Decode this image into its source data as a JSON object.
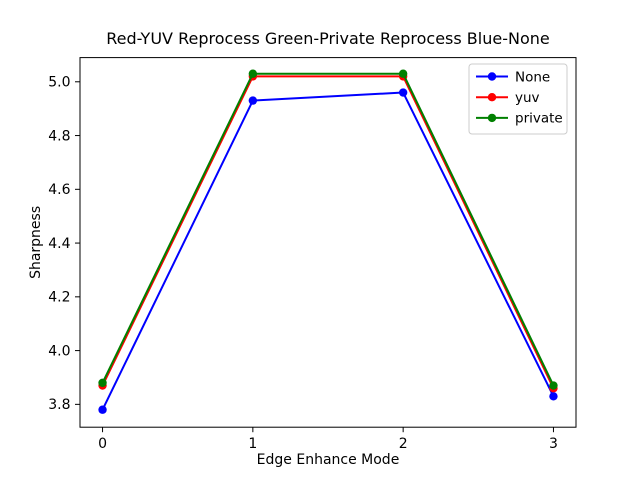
{
  "figure": {
    "background": "#ffffff",
    "plot_border_color": "#000000"
  },
  "chart_data": {
    "type": "line",
    "title": "Red-YUV Reprocess  Green-Private Reprocess  Blue-None",
    "xlabel": "Edge Enhance Mode",
    "ylabel": "Sharpness",
    "x": [
      0,
      1,
      2,
      3
    ],
    "series": [
      {
        "name": "None",
        "color": "#0000ff",
        "marker": "circle",
        "values": [
          3.78,
          4.93,
          4.96,
          3.83
        ]
      },
      {
        "name": "yuv",
        "color": "#ff0000",
        "marker": "circle",
        "values": [
          3.87,
          5.02,
          5.02,
          3.86
        ]
      },
      {
        "name": "private",
        "color": "#008000",
        "marker": "circle",
        "values": [
          3.88,
          5.03,
          5.03,
          3.87
        ]
      }
    ],
    "xlim": [
      -0.15,
      3.15
    ],
    "ylim": [
      3.715,
      5.09
    ],
    "xticks": [
      0,
      1,
      2,
      3
    ],
    "xtick_labels": [
      "0",
      "1",
      "2",
      "3"
    ],
    "yticks": [
      3.8,
      4.0,
      4.2,
      4.4,
      4.6,
      4.8,
      5.0
    ],
    "ytick_labels": [
      "3.8",
      "4.0",
      "4.2",
      "4.4",
      "4.6",
      "4.8",
      "5.0"
    ],
    "grid": false,
    "legend_position": "upper right",
    "legend_border_color": "#cccccc",
    "legend_background": "#ffffff"
  }
}
